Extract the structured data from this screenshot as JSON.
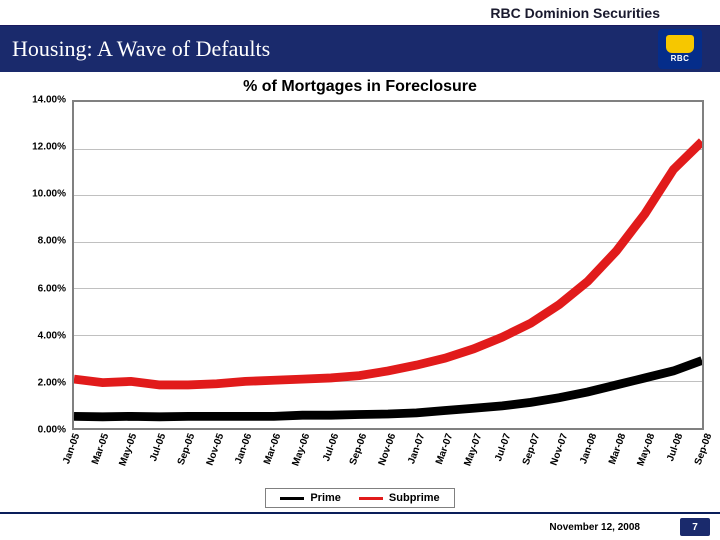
{
  "brand": {
    "top_label": "RBC Dominion Securities",
    "logo_text": "RBC",
    "header_bg": "#1a2a6c",
    "header_fg": "#ffffff",
    "logo_bg": "#052d8a",
    "logo_shield_color": "#f6c700"
  },
  "header": {
    "title": "Housing: A Wave of Defaults"
  },
  "footer": {
    "date": "November 12, 2008",
    "page": "7"
  },
  "chart": {
    "type": "line",
    "title": "% of Mortgages in Foreclosure",
    "title_fontsize": 16,
    "background_color": "#ffffff",
    "border_color": "#808080",
    "grid_color": "#c0c0c0",
    "yaxis": {
      "min": 0,
      "max": 14,
      "ticks": [
        0,
        2,
        4,
        6,
        8,
        10,
        12,
        14
      ],
      "tick_labels": [
        "0.00%",
        "2.00%",
        "4.00%",
        "6.00%",
        "8.00%",
        "10.00%",
        "12.00%",
        "14.00%"
      ],
      "label_fontsize": 10
    },
    "xaxis": {
      "categories": [
        "Jan-05",
        "Mar-05",
        "May-05",
        "Jul-05",
        "Sep-05",
        "Nov-05",
        "Jan-06",
        "Mar-06",
        "May-06",
        "Jul-06",
        "Sep-06",
        "Nov-06",
        "Jan-07",
        "Mar-07",
        "May-07",
        "Jul-07",
        "Sep-07",
        "Nov-07",
        "Jan-08",
        "Mar-08",
        "May-08",
        "Jul-08",
        "Sep-08"
      ],
      "label_fontsize": 10,
      "label_rotation_deg": -70
    },
    "series": [
      {
        "name": "Prime",
        "color": "#000000",
        "line_width": 2.2,
        "values": [
          0.5,
          0.48,
          0.5,
          0.48,
          0.5,
          0.5,
          0.5,
          0.5,
          0.55,
          0.55,
          0.58,
          0.6,
          0.65,
          0.75,
          0.85,
          0.95,
          1.1,
          1.3,
          1.55,
          1.85,
          2.15,
          2.45,
          2.9
        ]
      },
      {
        "name": "Subprime",
        "color": "#e11b1b",
        "line_width": 2.2,
        "values": [
          2.1,
          1.95,
          2.0,
          1.85,
          1.85,
          1.9,
          2.0,
          2.05,
          2.1,
          2.15,
          2.25,
          2.45,
          2.7,
          3.0,
          3.4,
          3.9,
          4.5,
          5.3,
          6.3,
          7.6,
          9.2,
          11.1,
          12.3
        ]
      }
    ],
    "legend": {
      "position": "bottom-center",
      "border_color": "#808080",
      "fontsize": 11
    }
  }
}
